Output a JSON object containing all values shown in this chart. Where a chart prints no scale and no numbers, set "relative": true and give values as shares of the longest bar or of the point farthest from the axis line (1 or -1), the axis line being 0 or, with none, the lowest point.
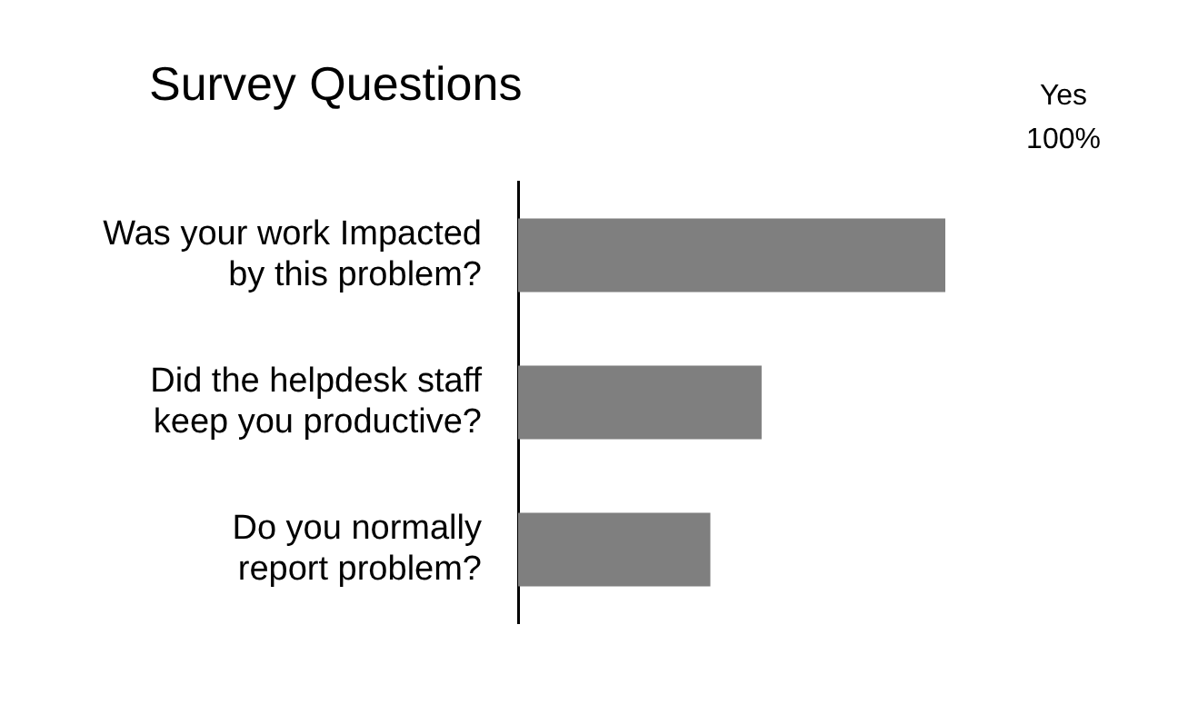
{
  "chart_data": {
    "type": "bar",
    "orientation": "horizontal",
    "relative": true,
    "title": "Survey Questions",
    "categories": [
      "Was your work Impacted by this problem?",
      "Did the helpdesk staff keep you productive?",
      "Do you normally report problem?"
    ],
    "values": [
      1,
      0.57,
      0.45
    ],
    "color": "#7f7f7f",
    "annotations": [
      "Yes 100%"
    ]
  }
}
